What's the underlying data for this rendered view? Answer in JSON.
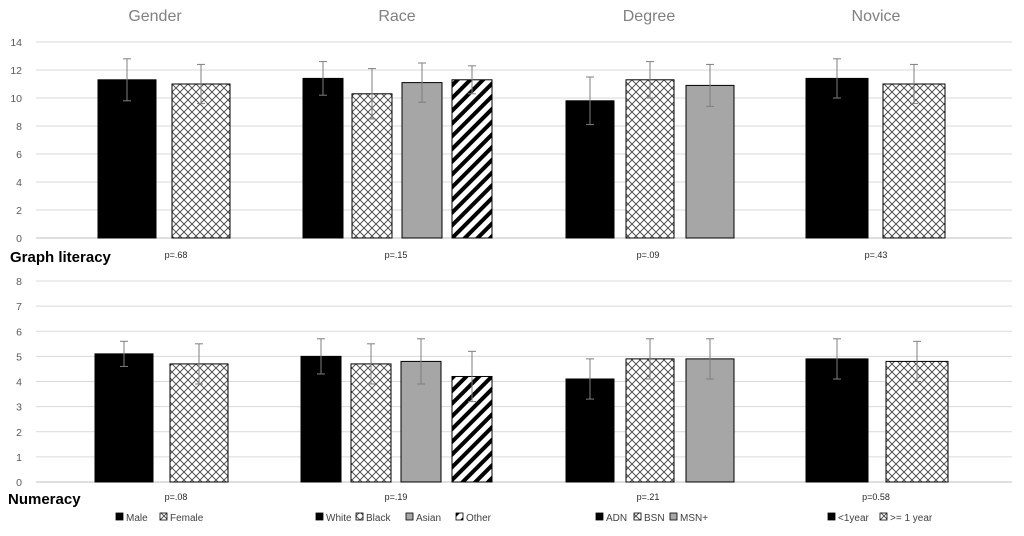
{
  "chart_data": {
    "type": "bar",
    "groups": [
      "Gender",
      "Race",
      "Degree",
      "Novice"
    ],
    "panels": [
      {
        "title": "Graph literacy",
        "ylim": [
          0,
          14
        ],
        "yticks": [
          "0",
          "2",
          "4",
          "6",
          "8",
          "10",
          "12",
          "14"
        ],
        "groups": [
          {
            "name": "Gender",
            "p": "p=.68",
            "bars": [
              {
                "category": "Male",
                "pattern": "black",
                "value": 11.3,
                "err": 1.5
              },
              {
                "category": "Female",
                "pattern": "crosshatch",
                "value": 11.0,
                "err": 1.4
              }
            ]
          },
          {
            "name": "Race",
            "p": "p=.15",
            "bars": [
              {
                "category": "White",
                "pattern": "black",
                "value": 11.4,
                "err": 1.2
              },
              {
                "category": "Black",
                "pattern": "crosshatch",
                "value": 10.3,
                "err": 1.8
              },
              {
                "category": "Asian",
                "pattern": "gray",
                "value": 11.1,
                "err": 1.4
              },
              {
                "category": "Other",
                "pattern": "diagonal",
                "value": 11.3,
                "err": 1.0
              }
            ]
          },
          {
            "name": "Degree",
            "p": "p=.09",
            "bars": [
              {
                "category": "ADN",
                "pattern": "black",
                "value": 9.8,
                "err": 1.7
              },
              {
                "category": "BSN",
                "pattern": "crosshatch",
                "value": 11.3,
                "err": 1.3
              },
              {
                "category": "MSN+",
                "pattern": "gray",
                "value": 10.9,
                "err": 1.5
              }
            ]
          },
          {
            "name": "Novice",
            "p": "p=.43",
            "bars": [
              {
                "category": "<1year",
                "pattern": "black",
                "value": 11.4,
                "err": 1.4
              },
              {
                "category": ">= 1 year",
                "pattern": "crosshatch",
                "value": 11.0,
                "err": 1.4
              }
            ]
          }
        ]
      },
      {
        "title": "Numeracy",
        "ylim": [
          0,
          8
        ],
        "yticks": [
          "0",
          "1",
          "2",
          "3",
          "4",
          "5",
          "6",
          "7",
          "8"
        ],
        "groups": [
          {
            "name": "Gender",
            "p": "p=.08",
            "bars": [
              {
                "category": "Male",
                "pattern": "black",
                "value": 5.1,
                "err": 0.5
              },
              {
                "category": "Female",
                "pattern": "crosshatch",
                "value": 4.7,
                "err": 0.8
              }
            ]
          },
          {
            "name": "Race",
            "p": "p=.19",
            "bars": [
              {
                "category": "White",
                "pattern": "black",
                "value": 5.0,
                "err": 0.7
              },
              {
                "category": "Black",
                "pattern": "crosshatch",
                "value": 4.7,
                "err": 0.8
              },
              {
                "category": "Asian",
                "pattern": "gray",
                "value": 4.8,
                "err": 0.9
              },
              {
                "category": "Other",
                "pattern": "diagonal",
                "value": 4.2,
                "err": 1.0
              }
            ]
          },
          {
            "name": "Degree",
            "p": "p=.21",
            "bars": [
              {
                "category": "ADN",
                "pattern": "black",
                "value": 4.1,
                "err": 0.8
              },
              {
                "category": "BSN",
                "pattern": "crosshatch",
                "value": 4.9,
                "err": 0.8
              },
              {
                "category": "MSN+",
                "pattern": "gray",
                "value": 4.9,
                "err": 0.8
              }
            ]
          },
          {
            "name": "Novice",
            "p": "p=0.58",
            "bars": [
              {
                "category": "<1year",
                "pattern": "black",
                "value": 4.9,
                "err": 0.8
              },
              {
                "category": ">= 1 year",
                "pattern": "crosshatch",
                "value": 4.8,
                "err": 0.8
              }
            ]
          }
        ]
      }
    ],
    "legend_position": "bottom",
    "grid": true
  }
}
